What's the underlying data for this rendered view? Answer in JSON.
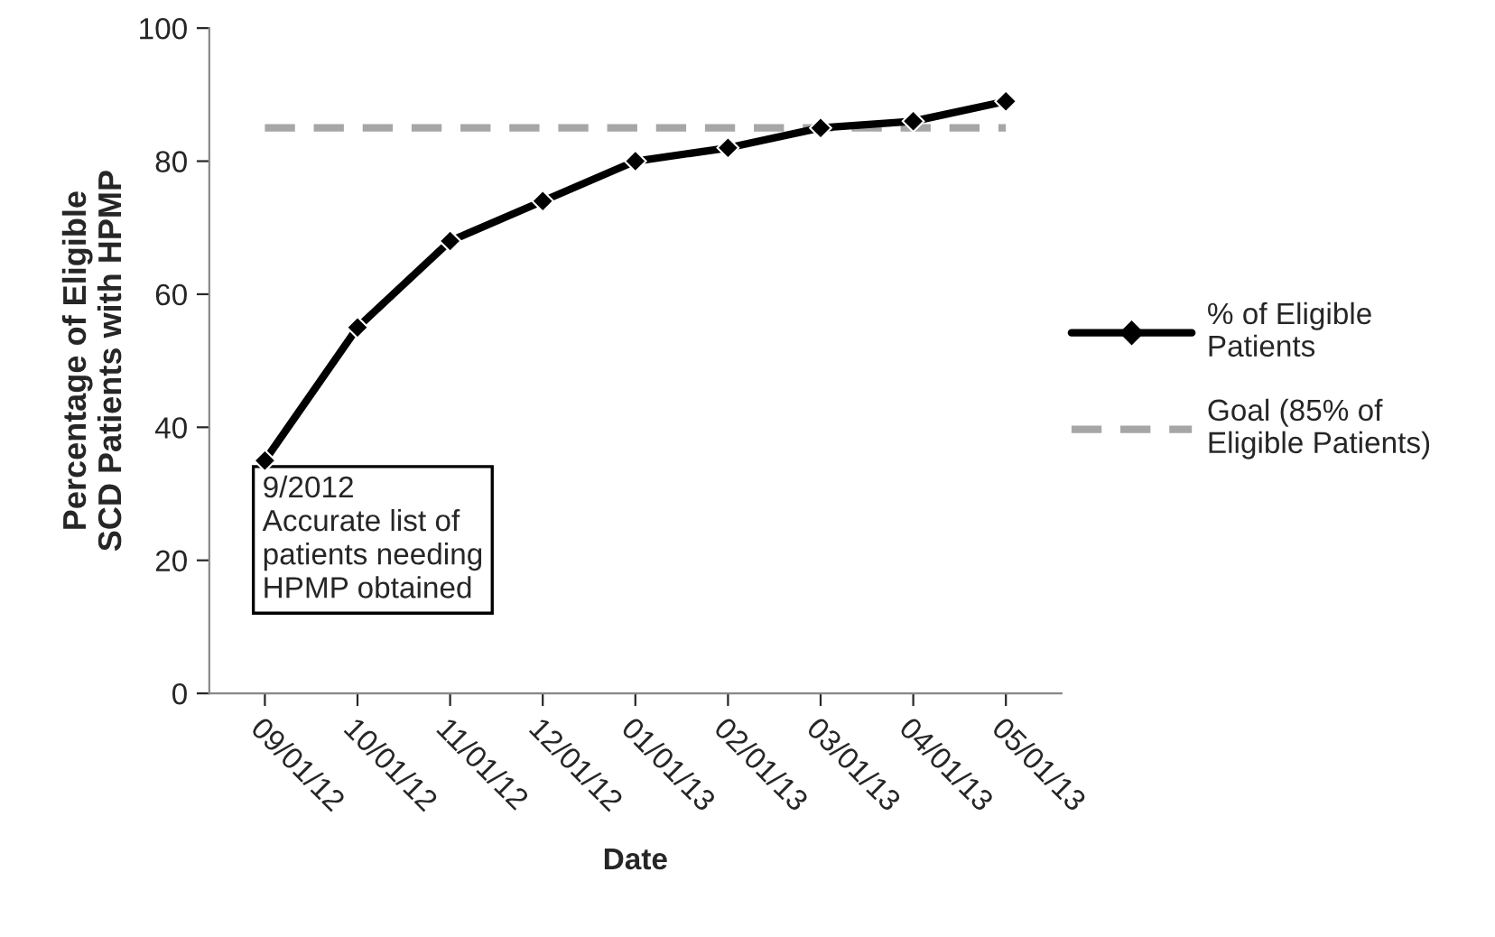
{
  "chart_data": {
    "type": "line",
    "xlabel": "Date",
    "ylabel": "Percentage of Eligible\nSCD Patients with HPMP",
    "categories": [
      "09/01/12",
      "10/01/12",
      "11/01/12",
      "12/01/12",
      "01/01/13",
      "02/01/13",
      "03/01/13",
      "04/01/13",
      "05/01/13"
    ],
    "series": [
      {
        "name": "% of Eligible\nPatients",
        "color": "#000000",
        "values": [
          35,
          55,
          68,
          74,
          80,
          82,
          85,
          86,
          89
        ]
      }
    ],
    "ref_lines": [
      {
        "axis": "y",
        "value": 85,
        "label": "Goal (85% of\nEligible Patients)",
        "color": "#a6a6a6",
        "line_style": "dashed"
      }
    ],
    "annotations": [
      {
        "text": "9/2012\nAccurate list of\npatients needing\nHPMP obtained",
        "x": "09/01/12",
        "y": 35
      }
    ],
    "ylim": [
      0,
      100
    ],
    "yticks": [
      0,
      20,
      40,
      60,
      80,
      100
    ],
    "marker": "diamond",
    "line_style": "solid",
    "grid": false,
    "legend": "right"
  }
}
